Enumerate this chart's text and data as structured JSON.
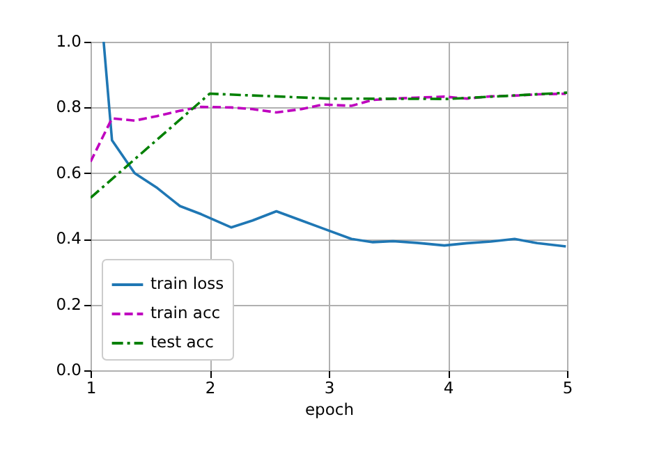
{
  "chart_data": {
    "type": "line",
    "xlabel": "epoch",
    "xlim": [
      1,
      5
    ],
    "ylim": [
      0,
      1
    ],
    "xticks": [
      1,
      2,
      3,
      4,
      5
    ],
    "yticks": [
      {
        "value": 0,
        "label": "0.0"
      },
      {
        "value": 0.2,
        "label": "0.2"
      },
      {
        "value": 0.4,
        "label": "0.4"
      },
      {
        "value": 0.6,
        "label": "0.6"
      },
      {
        "value": 0.8,
        "label": "0.8"
      },
      {
        "value": 1,
        "label": "1.0"
      }
    ],
    "grid": true,
    "legend": "bottom left",
    "marker": "none",
    "series": [
      {
        "name": "train loss",
        "color": "#1f77b4",
        "line_style": "solid",
        "x": [
          1.11,
          1.18,
          1.37,
          1.56,
          1.75,
          1.93,
          2.18,
          2.36,
          2.56,
          2.77,
          2.95,
          3.19,
          3.37,
          3.54,
          3.74,
          3.97,
          4.16,
          4.36,
          4.56,
          4.75,
          4.99
        ],
        "values": [
          1.0,
          0.7,
          0.6,
          0.555,
          0.5,
          0.475,
          0.435,
          0.456,
          0.484,
          0.456,
          0.432,
          0.4,
          0.39,
          0.393,
          0.388,
          0.38,
          0.387,
          0.392,
          0.4,
          0.387,
          0.377
        ]
      },
      {
        "name": "train acc",
        "color": "#bf00bf",
        "line_style": "dashed",
        "x": [
          1.0,
          1.18,
          1.37,
          1.56,
          1.75,
          1.93,
          2.18,
          2.36,
          2.56,
          2.77,
          2.95,
          3.19,
          3.37,
          3.54,
          3.74,
          3.97,
          4.16,
          4.36,
          4.56,
          4.75,
          4.99
        ],
        "values": [
          0.635,
          0.767,
          0.76,
          0.774,
          0.79,
          0.802,
          0.8,
          0.795,
          0.785,
          0.795,
          0.809,
          0.805,
          0.823,
          0.827,
          0.83,
          0.833,
          0.827,
          0.834,
          0.836,
          0.84,
          0.842
        ]
      },
      {
        "name": "test acc",
        "color": "#008000",
        "line_style": "dashdot",
        "x": [
          1,
          2,
          3,
          4,
          5
        ],
        "values": [
          0.525,
          0.842,
          0.827,
          0.826,
          0.845
        ]
      }
    ]
  }
}
